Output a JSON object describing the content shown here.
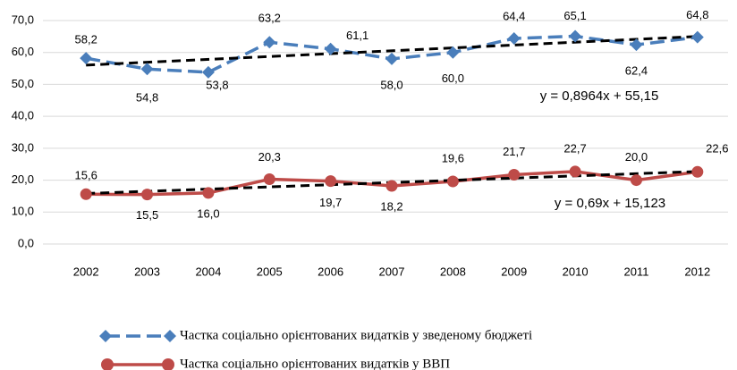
{
  "chart_data": {
    "type": "line",
    "categories": [
      "2002",
      "2003",
      "2004",
      "2005",
      "2006",
      "2007",
      "2008",
      "2009",
      "2010",
      "2011",
      "2012"
    ],
    "ylim": [
      0,
      70
    ],
    "yticks": [
      {
        "value": 0,
        "label": "0,0"
      },
      {
        "value": 10,
        "label": "10,0"
      },
      {
        "value": 20,
        "label": "20,0"
      },
      {
        "value": 30,
        "label": "30,0"
      },
      {
        "value": 40,
        "label": "40,0"
      },
      {
        "value": 50,
        "label": "50,0"
      },
      {
        "value": 60,
        "label": "60,0"
      },
      {
        "value": 70,
        "label": "70,0"
      }
    ],
    "grid": true,
    "series": [
      {
        "name": "Частка соціально орієнтованих видатків у зведеному бюджеті",
        "color": "#4a7ebb",
        "marker": "diamond",
        "dashed": true,
        "values": [
          58.2,
          54.8,
          53.8,
          63.2,
          61.1,
          58.0,
          60.0,
          64.4,
          65.1,
          62.4,
          64.8
        ],
        "value_labels": [
          "58,2",
          "54,8",
          "53,8",
          "63,2",
          "61,1",
          "58,0",
          "60,0",
          "64,4",
          "65,1",
          "62,4",
          "64,8"
        ],
        "trendline": {
          "label": "y = 0,8964x + 55,15",
          "slope": 0.8964,
          "intercept": 55.15
        }
      },
      {
        "name": "Частка соціально орієнтованих видатків у ВВП",
        "color": "#be4b48",
        "marker": "circle",
        "dashed": false,
        "values": [
          15.6,
          15.5,
          16.0,
          20.3,
          19.7,
          18.2,
          19.6,
          21.7,
          22.7,
          20.0,
          22.6
        ],
        "value_labels": [
          "15,6",
          "15,5",
          "16,0",
          "20,3",
          "19,7",
          "18,2",
          "19,6",
          "21,7",
          "22,7",
          "20,0",
          "22,6"
        ],
        "trendline": {
          "label": "y = 0,69x + 15,123",
          "slope": 0.69,
          "intercept": 15.123
        }
      }
    ],
    "legend": "bottom"
  }
}
